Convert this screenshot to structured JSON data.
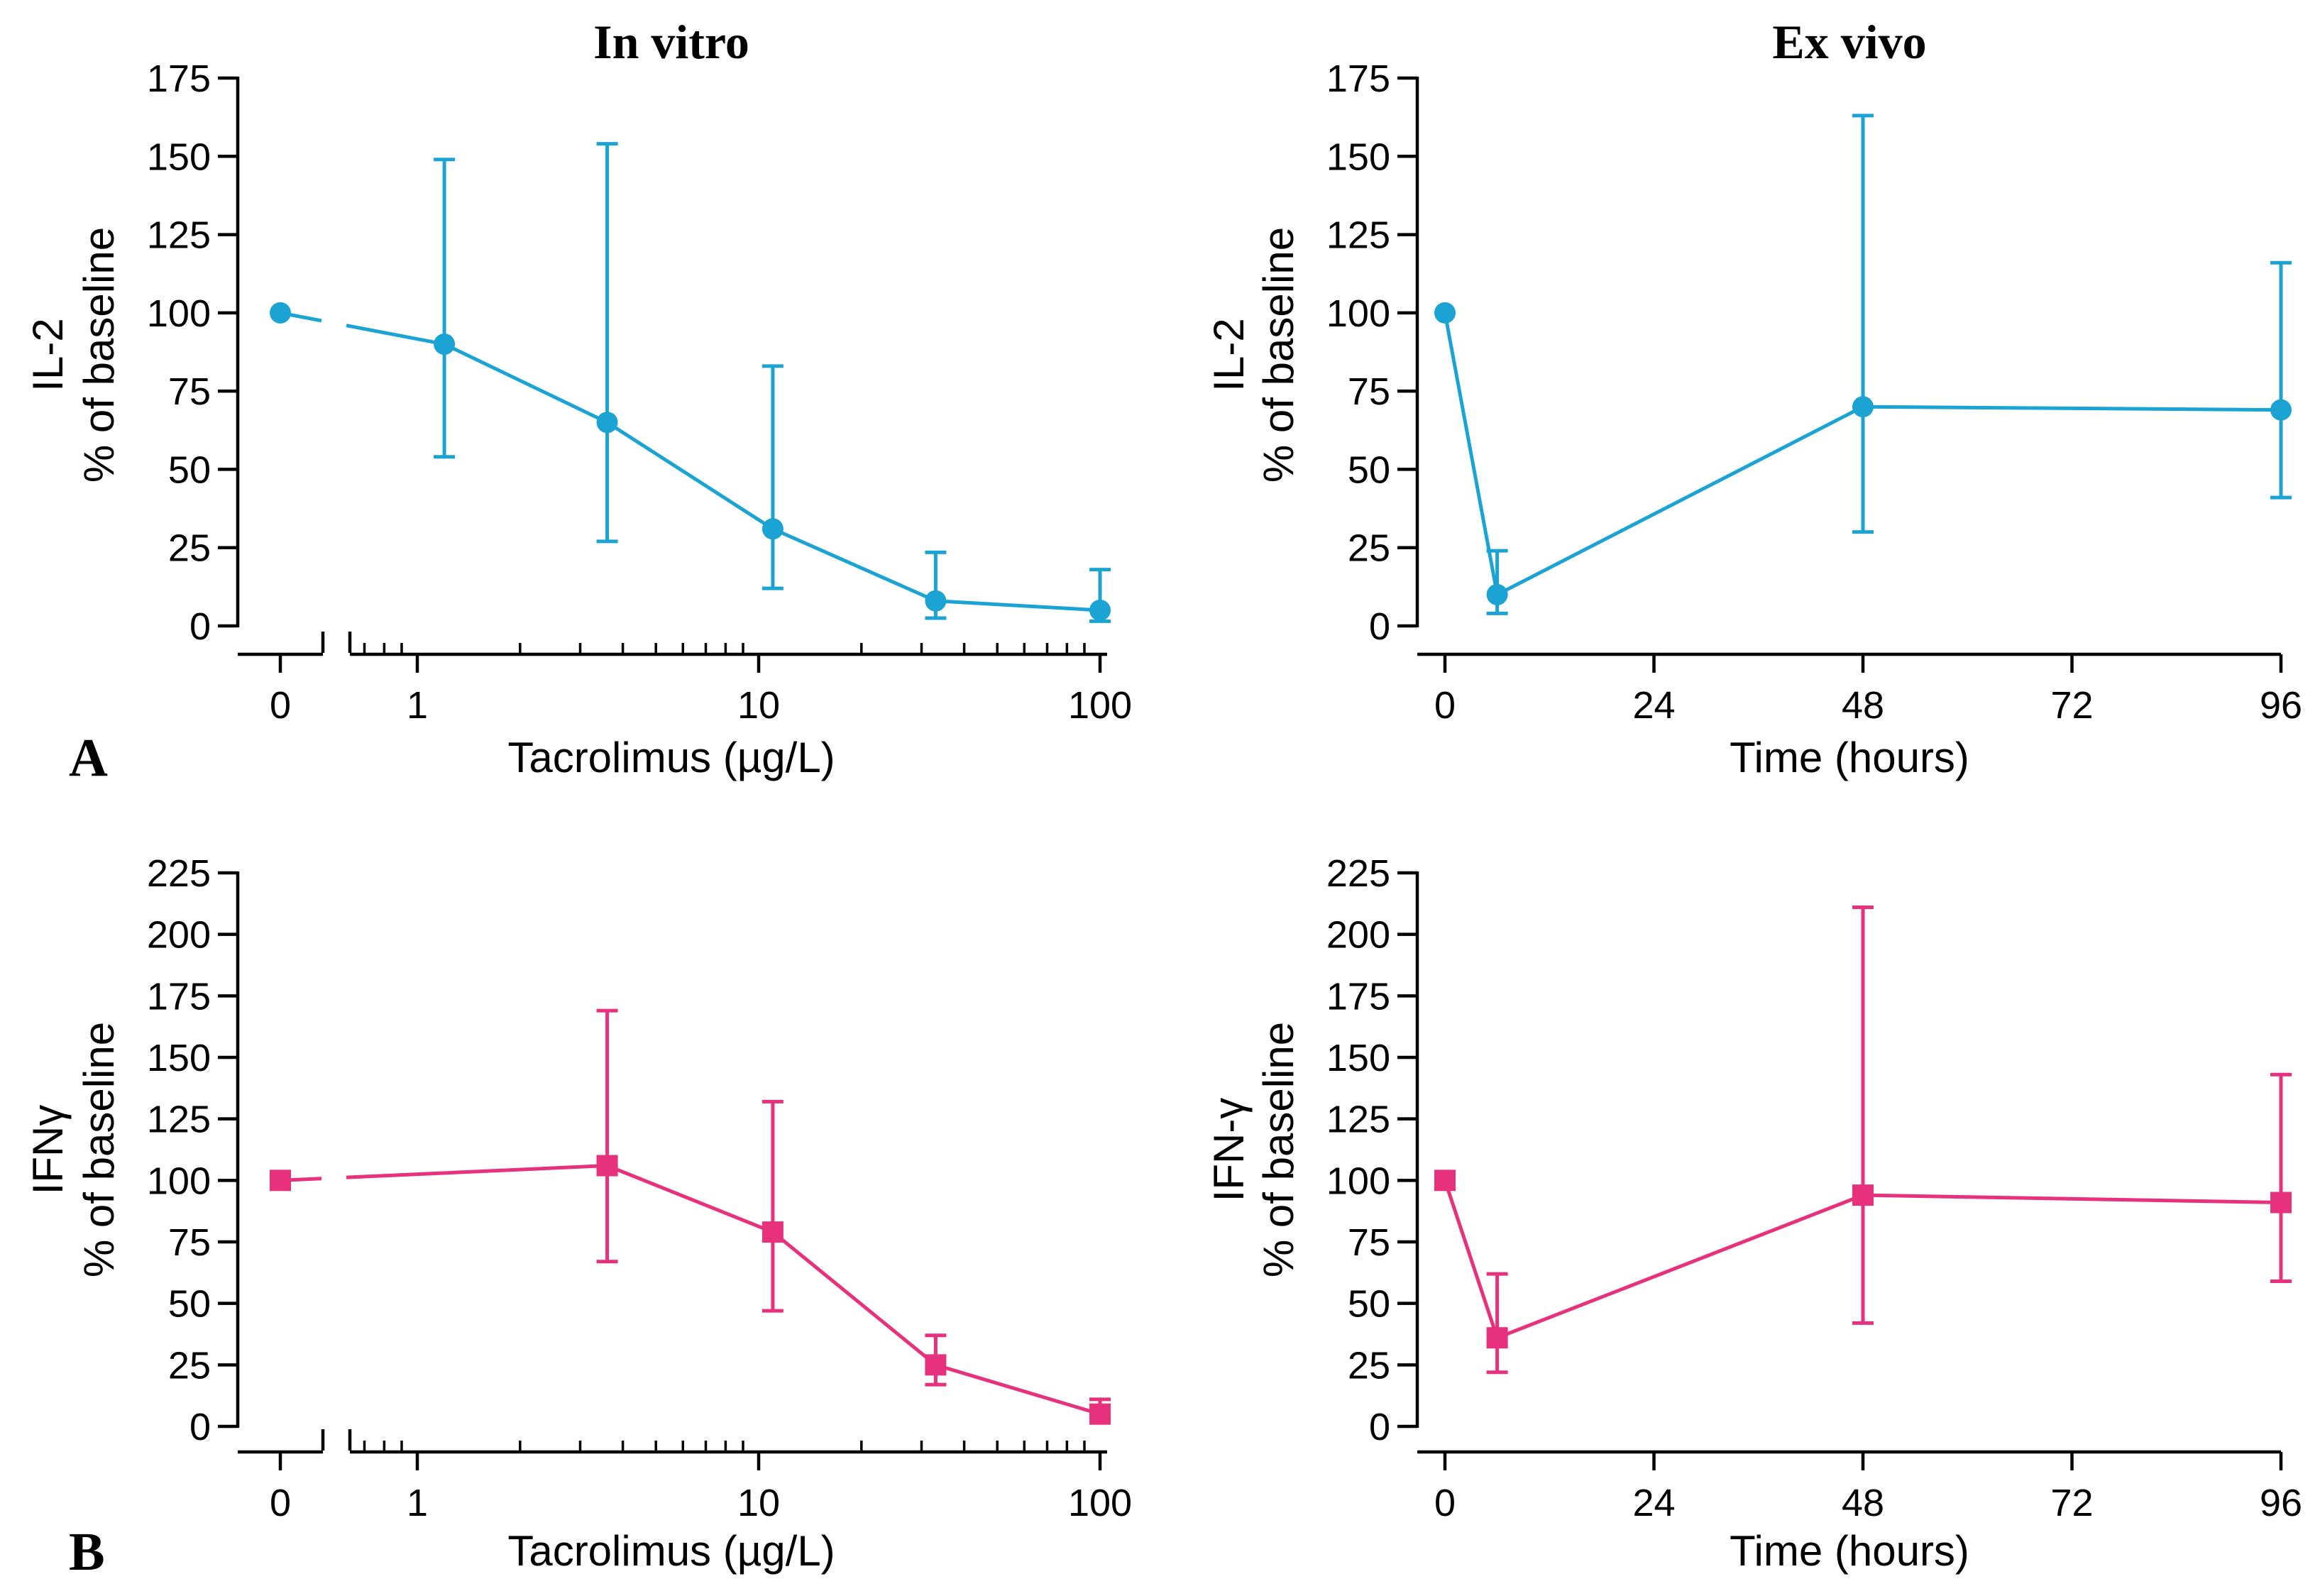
{
  "panel_labels": [
    "A",
    "B"
  ],
  "column_titles": [
    "In vitro",
    "Ex vivo"
  ],
  "colors": {
    "il2": "#1BA3D4",
    "ifn": "#E8317C"
  },
  "chart_data": [
    {
      "id": "a-invitro",
      "type": "line",
      "title": "In vitro",
      "panel": "A",
      "xlabel": "Tacrolimus (µg/L)",
      "x_scale": "log-with-zero-break",
      "x_ticks": [
        0,
        1,
        10,
        100
      ],
      "x_tick_labels": [
        "0",
        "1",
        "10",
        "100"
      ],
      "ylabel_lines": [
        "IL-2",
        "% of baseline"
      ],
      "ylim": [
        0,
        175
      ],
      "y_ticks": [
        0,
        25,
        50,
        75,
        100,
        125,
        150,
        175
      ],
      "marker": "circle",
      "color_key": "il2",
      "series": [
        {
          "name": "IL-2",
          "x": [
            0,
            1.2,
            3.6,
            11,
            33,
            100
          ],
          "y": [
            100,
            90,
            65,
            31,
            8,
            5
          ],
          "err_low": [
            null,
            54,
            27,
            12,
            2.5,
            1.5
          ],
          "err_high": [
            null,
            149,
            154,
            83,
            23.5,
            18
          ]
        }
      ]
    },
    {
      "id": "a-exvivo",
      "type": "line",
      "title": "Ex vivo",
      "panel": "A",
      "xlabel": "Time (hours)",
      "x_scale": "linear",
      "xlim": [
        0,
        96
      ],
      "x_ticks": [
        0,
        24,
        48,
        72,
        96
      ],
      "x_tick_labels": [
        "0",
        "24",
        "48",
        "72",
        "96"
      ],
      "ylabel_lines": [
        "IL-2",
        "% of baseline"
      ],
      "ylim": [
        0,
        175
      ],
      "y_ticks": [
        0,
        25,
        50,
        75,
        100,
        125,
        150,
        175
      ],
      "marker": "circle",
      "color_key": "il2",
      "series": [
        {
          "name": "IL-2",
          "x": [
            0,
            6,
            48,
            96
          ],
          "y": [
            100,
            10,
            70,
            69
          ],
          "err_low": [
            null,
            4,
            30,
            41
          ],
          "err_high": [
            null,
            24,
            163,
            116
          ]
        }
      ]
    },
    {
      "id": "b-invitro",
      "type": "line",
      "title": "",
      "panel": "B",
      "xlabel": "Tacrolimus (µg/L)",
      "x_scale": "log-with-zero-break",
      "x_ticks": [
        0,
        1,
        10,
        100
      ],
      "x_tick_labels": [
        "0",
        "1",
        "10",
        "100"
      ],
      "ylabel_lines": [
        "IFNγ",
        "% of baseline"
      ],
      "ylim": [
        0,
        225
      ],
      "y_ticks": [
        0,
        25,
        50,
        75,
        100,
        125,
        150,
        175,
        200,
        225
      ],
      "marker": "square",
      "color_key": "ifn",
      "series": [
        {
          "name": "IFNγ",
          "x": [
            0,
            3.6,
            11,
            33,
            100
          ],
          "y": [
            100,
            106,
            79,
            25,
            5
          ],
          "err_low": [
            null,
            67,
            47,
            17,
            2
          ],
          "err_high": [
            null,
            169,
            132,
            37,
            11
          ]
        }
      ]
    },
    {
      "id": "b-exvivo",
      "type": "line",
      "title": "",
      "panel": "B",
      "xlabel": "Time (hours)",
      "x_scale": "linear",
      "xlim": [
        0,
        96
      ],
      "x_ticks": [
        0,
        24,
        48,
        72,
        96
      ],
      "x_tick_labels": [
        "0",
        "24",
        "48",
        "72",
        "96"
      ],
      "ylabel_lines": [
        "IFN-γ",
        "% of baseline"
      ],
      "ylim": [
        0,
        225
      ],
      "y_ticks": [
        0,
        25,
        50,
        75,
        100,
        125,
        150,
        175,
        200,
        225
      ],
      "marker": "square",
      "color_key": "ifn",
      "series": [
        {
          "name": "IFN-γ",
          "x": [
            0,
            6,
            48,
            96
          ],
          "y": [
            100,
            36,
            94,
            91
          ],
          "err_low": [
            null,
            22,
            42,
            59
          ],
          "err_high": [
            null,
            62,
            211,
            143
          ]
        }
      ]
    }
  ]
}
